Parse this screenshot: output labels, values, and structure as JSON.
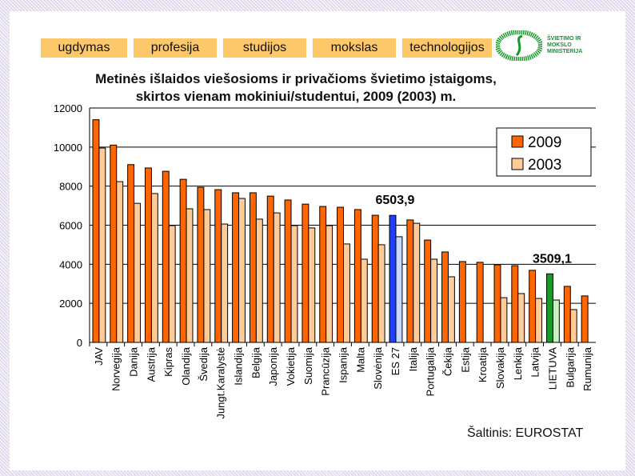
{
  "tabs": [
    "ugdymas",
    "profesija",
    "studijos",
    "mokslas",
    "technologijos"
  ],
  "logo": {
    "text": "ŠVIETIMO IR MOKSLO MINISTERIJA"
  },
  "source": "Šaltinis: EUROSTAT",
  "colors": {
    "s2009": "#ff6600",
    "s2003": "#ffcc99",
    "es2009": "#1f3fff",
    "es2003": "#c8d8ff",
    "lt2009": "#1a9a2a",
    "lt2003": "#c8f0c0"
  },
  "chart_data": {
    "type": "bar",
    "title": "Metinės išlaidos viešosioms ir privačioms švietimo įstaigoms, skirtos vienam mokiniui/studentui, 2009 (2003) m.",
    "title_lines": [
      "Metinės išlaidos viešosioms ir privačioms švietimo įstaigoms,",
      "skirtos vienam mokiniui/studentui, 2009 (2003) m."
    ],
    "ylim": [
      0,
      12000
    ],
    "yticks": [
      0,
      2000,
      4000,
      6000,
      8000,
      10000,
      12000
    ],
    "grid": true,
    "legend_position": "top-right",
    "categories": [
      "JAV",
      "Norvegija",
      "Danija",
      "Austrija",
      "Kipras",
      "Olandija",
      "Švedija",
      "Jungt.Karalystė",
      "Islandija",
      "Belgija",
      "Japonija",
      "Vokietija",
      "Suomija",
      "Prancūzija",
      "Ispanija",
      "Malta",
      "Slovėnija",
      "ES 27",
      "Italija",
      "Portugalija",
      "Čekija",
      "Estija",
      "Kroatija",
      "Slovakija",
      "Lenkija",
      "Latvija",
      "LIETUVA",
      "Bulgarija",
      "Rumunija"
    ],
    "series": [
      {
        "name": "2009",
        "values": [
          11400,
          10100,
          9100,
          8930,
          8760,
          8350,
          7940,
          7820,
          7660,
          7660,
          7490,
          7290,
          7080,
          6960,
          6920,
          6800,
          6510,
          6503.9,
          6270,
          5240,
          4630,
          4140,
          4100,
          3970,
          3930,
          3690,
          3509.1,
          2870,
          2380
        ]
      },
      {
        "name": "2003",
        "values": [
          9950,
          8230,
          7120,
          7620,
          5980,
          6840,
          6800,
          6060,
          7370,
          6310,
          6630,
          5980,
          5860,
          5980,
          5040,
          4260,
          5000,
          5410,
          6100,
          4260,
          3360,
          null,
          null,
          2290,
          2500,
          2250,
          2170,
          1680,
          null
        ]
      }
    ],
    "annotations": [
      {
        "category": "ES 27",
        "text": "6503,9"
      },
      {
        "category": "LIETUVA",
        "text": "3509,1"
      }
    ]
  }
}
